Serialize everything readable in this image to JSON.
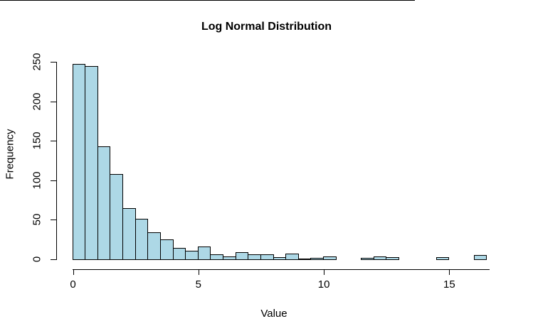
{
  "title": "Log Normal Distribution",
  "x_axis": {
    "label": "Value",
    "ticks": [
      0,
      5,
      10,
      15
    ],
    "range": [
      0,
      16.6
    ]
  },
  "y_axis": {
    "label": "Frequency",
    "ticks": [
      0,
      50,
      100,
      150,
      200,
      250
    ],
    "range": [
      0,
      250
    ]
  },
  "colors": {
    "bar_fill": "#ADD8E6",
    "bar_border": "#000000",
    "axis": "#000000",
    "text": "#000000",
    "background": "#FFFFFF"
  },
  "chart_data": {
    "type": "bar",
    "subtype": "histogram",
    "title": "Log Normal Distribution",
    "xlabel": "Value",
    "ylabel": "Frequency",
    "bin_start": 0,
    "bin_width": 0.5,
    "bin_edges": [
      0,
      0.5,
      1,
      1.5,
      2,
      2.5,
      3,
      3.5,
      4,
      4.5,
      5,
      5.5,
      6,
      6.5,
      7,
      7.5,
      8,
      8.5,
      9,
      9.5,
      10,
      10.5,
      11,
      11.5,
      12,
      12.5,
      13,
      13.5,
      14,
      14.5,
      15,
      15.5,
      16,
      16.5
    ],
    "frequencies": [
      247,
      245,
      143,
      108,
      65,
      51,
      34,
      25,
      14,
      11,
      16,
      6,
      4,
      9,
      6,
      6,
      3,
      7,
      1,
      2,
      4,
      0,
      0,
      2,
      4,
      3,
      0,
      0,
      0,
      3,
      0,
      0,
      5
    ],
    "xlim": [
      0,
      16.5
    ],
    "ylim": [
      0,
      250
    ],
    "grid": false,
    "legend": "none"
  }
}
